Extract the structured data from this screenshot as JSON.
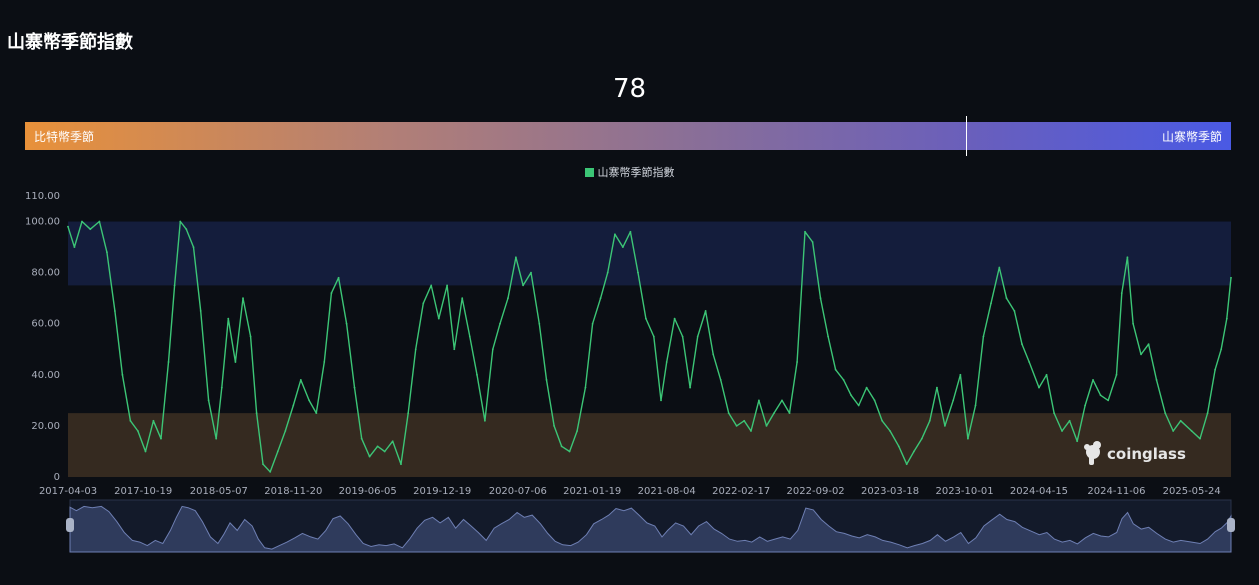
{
  "page": {
    "title": "山寨幣季節指數",
    "current_value": "78"
  },
  "gauge": {
    "left_label": "比特幣季節",
    "right_label": "山寨幣季節",
    "marker_value": 78
  },
  "legend": {
    "series_name": "山寨幣季節指數"
  },
  "watermark": {
    "text": "coinglass"
  },
  "colors": {
    "background": "#0b0e14",
    "line": "#3cc576",
    "altcoin_zone": "#141d3c",
    "bitcoin_zone": "#352a20",
    "slider_fill": "#2f3b5c",
    "slider_line": "#6e7fb3"
  },
  "chart_data": {
    "type": "line",
    "title": "",
    "series": [
      {
        "name": "山寨幣季節指數",
        "points": [
          [
            "2017-04-03",
            98
          ],
          [
            "2017-04-20",
            90
          ],
          [
            "2017-05-10",
            100
          ],
          [
            "2017-06-01",
            97
          ],
          [
            "2017-06-25",
            100
          ],
          [
            "2017-07-15",
            88
          ],
          [
            "2017-08-05",
            65
          ],
          [
            "2017-08-25",
            40
          ],
          [
            "2017-09-15",
            22
          ],
          [
            "2017-10-05",
            18
          ],
          [
            "2017-10-25",
            10
          ],
          [
            "2017-11-15",
            22
          ],
          [
            "2017-12-05",
            15
          ],
          [
            "2017-12-25",
            45
          ],
          [
            "2018-01-10",
            75
          ],
          [
            "2018-01-25",
            100
          ],
          [
            "2018-02-10",
            97
          ],
          [
            "2018-03-01",
            90
          ],
          [
            "2018-03-20",
            65
          ],
          [
            "2018-04-10",
            30
          ],
          [
            "2018-04-30",
            15
          ],
          [
            "2018-05-15",
            35
          ],
          [
            "2018-06-01",
            62
          ],
          [
            "2018-06-20",
            45
          ],
          [
            "2018-07-10",
            70
          ],
          [
            "2018-07-30",
            55
          ],
          [
            "2018-08-15",
            25
          ],
          [
            "2018-09-01",
            5
          ],
          [
            "2018-09-20",
            2
          ],
          [
            "2018-10-10",
            10
          ],
          [
            "2018-10-30",
            18
          ],
          [
            "2018-11-20",
            28
          ],
          [
            "2018-12-10",
            38
          ],
          [
            "2019-01-01",
            30
          ],
          [
            "2019-01-20",
            25
          ],
          [
            "2019-02-10",
            45
          ],
          [
            "2019-03-01",
            72
          ],
          [
            "2019-03-20",
            78
          ],
          [
            "2019-04-10",
            60
          ],
          [
            "2019-05-01",
            35
          ],
          [
            "2019-05-20",
            15
          ],
          [
            "2019-06-10",
            8
          ],
          [
            "2019-07-01",
            12
          ],
          [
            "2019-07-20",
            10
          ],
          [
            "2019-08-10",
            14
          ],
          [
            "2019-09-01",
            5
          ],
          [
            "2019-09-20",
            25
          ],
          [
            "2019-10-10",
            50
          ],
          [
            "2019-10-30",
            68
          ],
          [
            "2019-11-20",
            75
          ],
          [
            "2019-12-10",
            62
          ],
          [
            "2020-01-01",
            75
          ],
          [
            "2020-01-20",
            50
          ],
          [
            "2020-02-10",
            70
          ],
          [
            "2020-03-01",
            55
          ],
          [
            "2020-03-20",
            40
          ],
          [
            "2020-04-10",
            22
          ],
          [
            "2020-05-01",
            50
          ],
          [
            "2020-05-20",
            60
          ],
          [
            "2020-06-10",
            70
          ],
          [
            "2020-07-01",
            86
          ],
          [
            "2020-07-20",
            75
          ],
          [
            "2020-08-10",
            80
          ],
          [
            "2020-09-01",
            60
          ],
          [
            "2020-09-20",
            38
          ],
          [
            "2020-10-10",
            20
          ],
          [
            "2020-10-30",
            12
          ],
          [
            "2020-11-20",
            10
          ],
          [
            "2020-12-10",
            18
          ],
          [
            "2021-01-01",
            35
          ],
          [
            "2021-01-20",
            60
          ],
          [
            "2021-02-10",
            70
          ],
          [
            "2021-03-01",
            80
          ],
          [
            "2021-03-20",
            95
          ],
          [
            "2021-04-10",
            90
          ],
          [
            "2021-04-30",
            96
          ],
          [
            "2021-05-20",
            80
          ],
          [
            "2021-06-10",
            62
          ],
          [
            "2021-07-01",
            55
          ],
          [
            "2021-07-20",
            30
          ],
          [
            "2021-08-04",
            45
          ],
          [
            "2021-08-25",
            62
          ],
          [
            "2021-09-15",
            55
          ],
          [
            "2021-10-05",
            35
          ],
          [
            "2021-10-25",
            55
          ],
          [
            "2021-11-15",
            65
          ],
          [
            "2021-12-05",
            48
          ],
          [
            "2021-12-25",
            38
          ],
          [
            "2022-01-15",
            25
          ],
          [
            "2022-02-05",
            20
          ],
          [
            "2022-02-25",
            22
          ],
          [
            "2022-03-15",
            18
          ],
          [
            "2022-04-05",
            30
          ],
          [
            "2022-04-25",
            20
          ],
          [
            "2022-05-15",
            25
          ],
          [
            "2022-06-05",
            30
          ],
          [
            "2022-06-25",
            25
          ],
          [
            "2022-07-15",
            45
          ],
          [
            "2022-08-05",
            96
          ],
          [
            "2022-08-25",
            92
          ],
          [
            "2022-09-15",
            70
          ],
          [
            "2022-10-05",
            55
          ],
          [
            "2022-10-25",
            42
          ],
          [
            "2022-11-15",
            38
          ],
          [
            "2022-12-05",
            32
          ],
          [
            "2022-12-25",
            28
          ],
          [
            "2023-01-15",
            35
          ],
          [
            "2023-02-05",
            30
          ],
          [
            "2023-02-25",
            22
          ],
          [
            "2023-03-18",
            18
          ],
          [
            "2023-04-10",
            12
          ],
          [
            "2023-05-01",
            5
          ],
          [
            "2023-05-20",
            10
          ],
          [
            "2023-06-10",
            15
          ],
          [
            "2023-07-01",
            22
          ],
          [
            "2023-07-20",
            35
          ],
          [
            "2023-08-10",
            20
          ],
          [
            "2023-09-01",
            30
          ],
          [
            "2023-09-20",
            40
          ],
          [
            "2023-10-10",
            15
          ],
          [
            "2023-10-30",
            28
          ],
          [
            "2023-11-20",
            55
          ],
          [
            "2023-12-10",
            68
          ],
          [
            "2024-01-01",
            82
          ],
          [
            "2024-01-20",
            70
          ],
          [
            "2024-02-10",
            65
          ],
          [
            "2024-03-01",
            52
          ],
          [
            "2024-03-20",
            45
          ],
          [
            "2024-04-15",
            35
          ],
          [
            "2024-05-05",
            40
          ],
          [
            "2024-05-25",
            25
          ],
          [
            "2024-06-15",
            18
          ],
          [
            "2024-07-05",
            22
          ],
          [
            "2024-07-25",
            14
          ],
          [
            "2024-08-15",
            28
          ],
          [
            "2024-09-05",
            38
          ],
          [
            "2024-09-25",
            32
          ],
          [
            "2024-10-15",
            30
          ],
          [
            "2024-11-06",
            40
          ],
          [
            "2024-11-20",
            72
          ],
          [
            "2024-12-05",
            86
          ],
          [
            "2024-12-20",
            60
          ],
          [
            "2025-01-10",
            48
          ],
          [
            "2025-01-30",
            52
          ],
          [
            "2025-02-20",
            38
          ],
          [
            "2025-03-15",
            25
          ],
          [
            "2025-04-05",
            18
          ],
          [
            "2025-04-25",
            22
          ],
          [
            "2025-05-24",
            18
          ],
          [
            "2025-06-15",
            15
          ],
          [
            "2025-07-05",
            25
          ],
          [
            "2025-07-25",
            42
          ],
          [
            "2025-08-10",
            50
          ],
          [
            "2025-08-25",
            62
          ],
          [
            "2025-09-05",
            78
          ]
        ]
      }
    ],
    "x_ticks": [
      "2017-04-03",
      "2017-10-19",
      "2018-05-07",
      "2018-11-20",
      "2019-06-05",
      "2019-12-19",
      "2020-07-06",
      "2021-01-19",
      "2021-08-04",
      "2022-02-17",
      "2022-09-02",
      "2023-03-18",
      "2023-10-01",
      "2024-04-15",
      "2024-11-06",
      "2025-05-24"
    ],
    "x_range": [
      "2017-04-03",
      "2025-09-05"
    ],
    "y_ticks": [
      "0",
      "20.00",
      "40.00",
      "60.00",
      "80.00",
      "100.00",
      "110.00"
    ],
    "ylim": [
      0,
      110
    ],
    "bands": [
      {
        "from": 75,
        "to": 100,
        "color": "#141d3c"
      },
      {
        "from": 0,
        "to": 25,
        "color": "#352a20"
      }
    ],
    "grid": false,
    "legend_position": "top-center",
    "zoom_slider": true
  }
}
